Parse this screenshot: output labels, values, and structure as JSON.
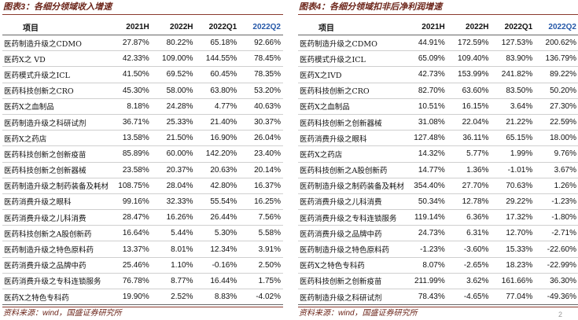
{
  "left": {
    "title": "图表3：各细分领域收入增速",
    "headers": [
      "项目",
      "2021H",
      "2022H",
      "2022Q1",
      "2022Q2"
    ],
    "rows": [
      [
        "医药制造升级之CDMO",
        "27.87%",
        "80.22%",
        "65.18%",
        "92.66%"
      ],
      [
        "医药X之 VD",
        "42.33%",
        "109.00%",
        "144.55%",
        "78.45%"
      ],
      [
        "医药模式升级之ICL",
        "41.50%",
        "69.52%",
        "60.45%",
        "78.35%"
      ],
      [
        "医药科技创新之CRO",
        "45.30%",
        "58.00%",
        "63.80%",
        "53.20%"
      ],
      [
        "医药X之血制品",
        "8.18%",
        "24.28%",
        "4.77%",
        "40.63%"
      ],
      [
        "医药制造升级之科研试剂",
        "36.71%",
        "25.33%",
        "21.40%",
        "30.37%"
      ],
      [
        "医药X之药店",
        "13.58%",
        "21.50%",
        "16.90%",
        "26.04%"
      ],
      [
        "医药科技创新之创新疫苗",
        "85.89%",
        "60.00%",
        "142.20%",
        "23.40%"
      ],
      [
        "医药科技创新之创新器械",
        "23.58%",
        "20.37%",
        "20.63%",
        "20.14%"
      ],
      [
        "医药制造升级之制药装备及耗材",
        "108.75%",
        "28.04%",
        "42.80%",
        "16.37%"
      ],
      [
        "医药消费升级之眼科",
        "99.16%",
        "32.33%",
        "55.54%",
        "16.25%"
      ],
      [
        "医药消费升级之儿科消费",
        "28.47%",
        "16.26%",
        "26.44%",
        "7.56%"
      ],
      [
        "医药科技创新之A股创新药",
        "16.64%",
        "5.44%",
        "5.30%",
        "5.58%"
      ],
      [
        "医药制造升级之特色原料药",
        "13.37%",
        "8.01%",
        "12.34%",
        "3.91%"
      ],
      [
        "医药消费升级之品牌中药",
        "25.46%",
        "1.10%",
        "-0.16%",
        "2.50%"
      ],
      [
        "医药消费升级之专科连锁服务",
        "76.78%",
        "8.77%",
        "16.44%",
        "1.75%"
      ],
      [
        "医药X之特色专科药",
        "19.90%",
        "2.52%",
        "8.83%",
        "-4.02%"
      ]
    ],
    "source": "资料来源：wind，国盛证券研究所"
  },
  "right": {
    "title": "图表4：各细分领域扣非后净利润增速",
    "headers": [
      "项目",
      "2021H",
      "2022H",
      "2022Q1",
      "2022Q2"
    ],
    "rows": [
      [
        "医药制造升级之CDMO",
        "44.91%",
        "172.59%",
        "127.53%",
        "200.62%"
      ],
      [
        "医药模式升级之ICL",
        "65.09%",
        "109.40%",
        "83.90%",
        "136.79%"
      ],
      [
        "医药X之IVD",
        "42.73%",
        "153.99%",
        "241.82%",
        "89.22%"
      ],
      [
        "医药科技创新之CRO",
        "82.70%",
        "63.60%",
        "83.50%",
        "50.20%"
      ],
      [
        "医药X之血制品",
        "10.51%",
        "16.15%",
        "3.64%",
        "27.30%"
      ],
      [
        "医药科技创新之创新器械",
        "31.08%",
        "22.04%",
        "21.22%",
        "22.59%"
      ],
      [
        "医药消费升级之眼科",
        "127.48%",
        "36.11%",
        "65.15%",
        "18.00%"
      ],
      [
        "医药X之药店",
        "14.32%",
        "5.77%",
        "1.99%",
        "9.76%"
      ],
      [
        "医药科技创新之A股创新药",
        "14.77%",
        "1.36%",
        "-1.01%",
        "3.67%"
      ],
      [
        "医药制造升级之制药装备及耗材",
        "354.40%",
        "27.70%",
        "70.63%",
        "1.26%"
      ],
      [
        "医药消费升级之儿科消费",
        "50.34%",
        "12.78%",
        "29.22%",
        "-1.23%"
      ],
      [
        "医药消费升级之专科连锁服务",
        "119.14%",
        "6.36%",
        "17.32%",
        "-1.80%"
      ],
      [
        "医药消费升级之品牌中药",
        "24.73%",
        "6.31%",
        "12.70%",
        "-2.71%"
      ],
      [
        "医药制造升级之特色原料药",
        "-1.23%",
        "-3.60%",
        "15.33%",
        "-22.60%"
      ],
      [
        "医药X之特色专科药",
        "8.07%",
        "-2.65%",
        "18.23%",
        "-22.99%"
      ],
      [
        "医药科技创新之创新疫苗",
        "211.99%",
        "3.62%",
        "161.66%",
        "36.30%"
      ],
      [
        "医药制造升级之科研试剂",
        "78.43%",
        "-4.65%",
        "77.04%",
        "-49.36%"
      ]
    ],
    "source": "资料来源：wind，国盛证券研究所"
  },
  "page_number": "2",
  "colors": {
    "title": "#6b2318",
    "q2_header": "#2457a8"
  }
}
